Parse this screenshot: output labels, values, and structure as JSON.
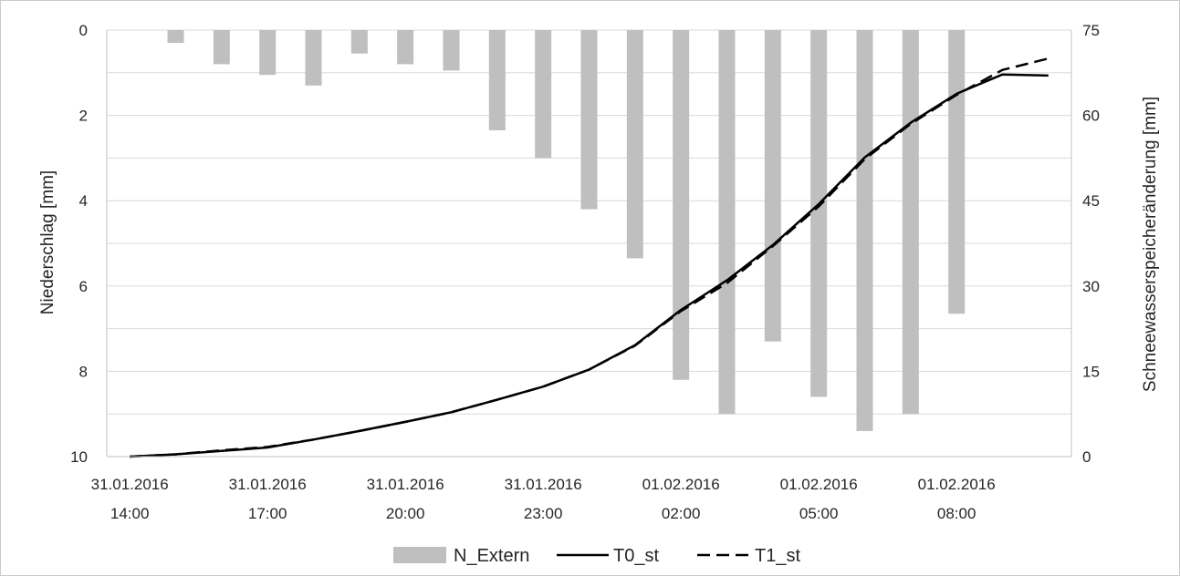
{
  "chart_data": {
    "type": "bar+line",
    "title": "",
    "categories": [
      "31.01.2016 14:00",
      "31.01.2016 15:00",
      "31.01.2016 16:00",
      "31.01.2016 17:00",
      "31.01.2016 18:00",
      "31.01.2016 19:00",
      "31.01.2016 20:00",
      "31.01.2016 21:00",
      "31.01.2016 22:00",
      "31.01.2016 23:00",
      "01.02.2016 00:00",
      "01.02.2016 01:00",
      "01.02.2016 02:00",
      "01.02.2016 03:00",
      "01.02.2016 04:00",
      "01.02.2016 05:00",
      "01.02.2016 06:00",
      "01.02.2016 07:00",
      "01.02.2016 08:00",
      "01.02.2016 09:00",
      "01.02.2016 10:00"
    ],
    "x_tick_labels": [
      {
        "index": 0,
        "line1": "31.01.2016",
        "line2": "14:00"
      },
      {
        "index": 3,
        "line1": "31.01.2016",
        "line2": "17:00"
      },
      {
        "index": 6,
        "line1": "31.01.2016",
        "line2": "20:00"
      },
      {
        "index": 9,
        "line1": "31.01.2016",
        "line2": "23:00"
      },
      {
        "index": 12,
        "line1": "01.02.2016",
        "line2": "02:00"
      },
      {
        "index": 15,
        "line1": "01.02.2016",
        "line2": "05:00"
      },
      {
        "index": 18,
        "line1": "01.02.2016",
        "line2": "08:00"
      }
    ],
    "bar_series": {
      "name": "N_Extern",
      "axis": "left",
      "color": "#bfbfbf",
      "values": [
        0,
        0.3,
        0.8,
        1.05,
        1.3,
        0.55,
        0.8,
        0.95,
        2.35,
        3.0,
        4.2,
        5.35,
        8.2,
        9.0,
        7.3,
        8.6,
        9.4,
        9.0,
        6.65,
        null,
        null
      ]
    },
    "line_series": [
      {
        "name": "T0_st",
        "axis": "right",
        "color": "#000000",
        "dash": "solid",
        "values": [
          0,
          0.4,
          1.0,
          1.6,
          3.0,
          4.5,
          6.1,
          7.8,
          10.0,
          12.3,
          15.3,
          19.6,
          25.8,
          31.0,
          37.2,
          44.4,
          52.6,
          58.7,
          63.8,
          67.2,
          67.0
        ]
      },
      {
        "name": "T1_st",
        "axis": "right",
        "color": "#000000",
        "dash": "dashed",
        "values": [
          0,
          0.4,
          1.1,
          1.7,
          3.0,
          4.5,
          6.1,
          7.8,
          10.0,
          12.3,
          15.3,
          19.5,
          25.6,
          30.5,
          37.0,
          44.0,
          52.3,
          58.5,
          63.6,
          68.0,
          70.0
        ]
      }
    ],
    "left_axis": {
      "label": "Niederschlag [mm]",
      "range": [
        0,
        10
      ],
      "reversed": true,
      "ticks": [
        0,
        2,
        4,
        6,
        8,
        10
      ]
    },
    "right_axis": {
      "label": "Schneewasserspeicheränderung  [mm]",
      "range": [
        0,
        75
      ],
      "ticks": [
        0,
        15,
        30,
        45,
        60,
        75
      ]
    },
    "grid": true,
    "legend": {
      "position": "bottom",
      "items": [
        "N_Extern",
        "T0_st",
        "T1_st"
      ]
    }
  }
}
